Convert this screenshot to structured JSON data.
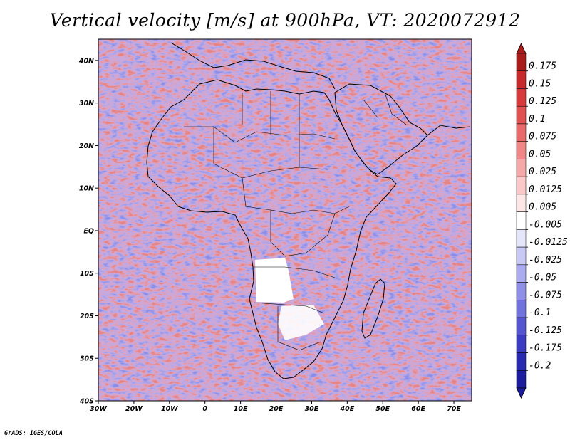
{
  "title": "Vertical velocity [m/s] at 900hPa, VT: 2020072912",
  "footer": "GrADS: IGES/COLA",
  "map": {
    "lat_labels": [
      "40N",
      "30N",
      "20N",
      "10N",
      "EQ",
      "10S",
      "20S",
      "30S",
      "40S"
    ],
    "lat_values": [
      40,
      30,
      20,
      10,
      0,
      -10,
      -20,
      -30,
      -40
    ],
    "lon_labels": [
      "30W",
      "20W",
      "10W",
      "0",
      "10E",
      "20E",
      "30E",
      "40E",
      "50E",
      "60E",
      "70E"
    ],
    "lon_values": [
      -30,
      -20,
      -10,
      0,
      10,
      20,
      30,
      40,
      50,
      60,
      70
    ],
    "lon_range": [
      -30,
      75
    ],
    "lat_range": [
      -40,
      45
    ]
  },
  "colorbar": {
    "labels": [
      "0.175",
      "0.15",
      "0.125",
      "0.1",
      "0.075",
      "0.05",
      "0.025",
      "0.0125",
      "0.005",
      "-0.005",
      "-0.0125",
      "-0.025",
      "-0.05",
      "-0.075",
      "-0.1",
      "-0.125",
      "-0.175",
      "-0.2"
    ],
    "colors": [
      "#a81c1c",
      "#c62a2a",
      "#d63a3a",
      "#e05252",
      "#e86a6a",
      "#ef8787",
      "#f5a8a8",
      "#fac8c8",
      "#fde6e6",
      "#ffffff",
      "#e6e6fb",
      "#c9c9f5",
      "#ababef",
      "#8f8fe6",
      "#7272dc",
      "#5555d0",
      "#3c3cc2",
      "#2a2ab0",
      "#1c1c9c"
    ]
  }
}
